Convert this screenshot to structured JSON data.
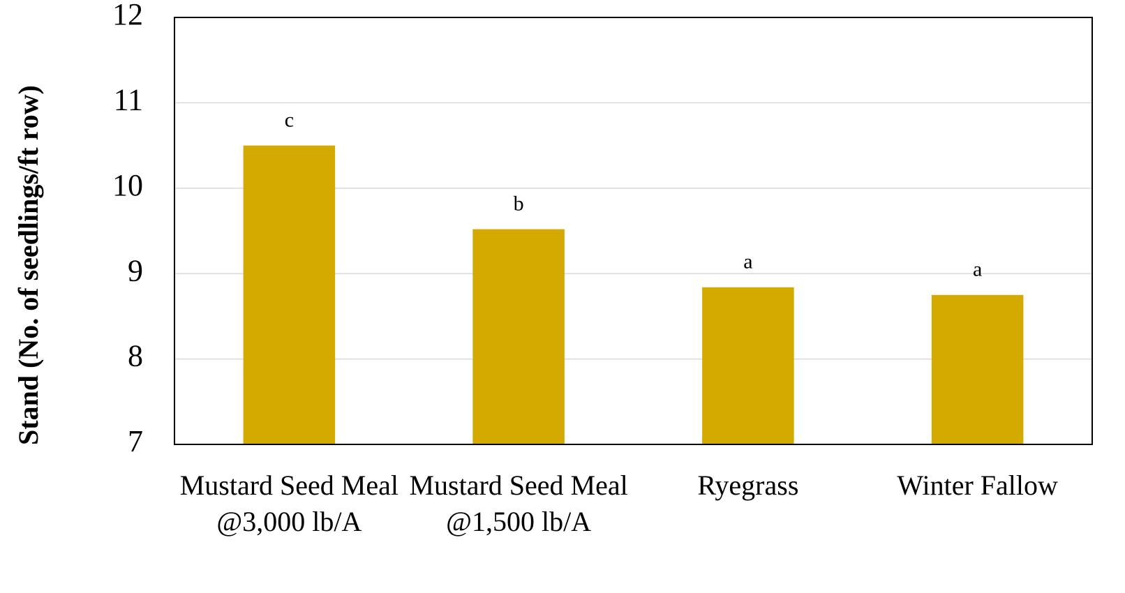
{
  "chart_data": {
    "type": "bar",
    "y_label": "Stand (No. of seedlings/ft row)",
    "categories": [
      "Mustard Seed Meal @3,000 lb/A",
      "Mustard Seed Meal @1,500 lb/A",
      "Ryegrass",
      "Winter Fallow"
    ],
    "values": [
      10.5,
      9.52,
      8.84,
      8.75
    ],
    "annotations": [
      "c",
      "b",
      "a",
      "a"
    ],
    "color": "#d4a900",
    "ylim": [
      7,
      12
    ],
    "yticks": [
      7,
      8,
      9,
      10,
      11,
      12
    ],
    "grid": true
  }
}
